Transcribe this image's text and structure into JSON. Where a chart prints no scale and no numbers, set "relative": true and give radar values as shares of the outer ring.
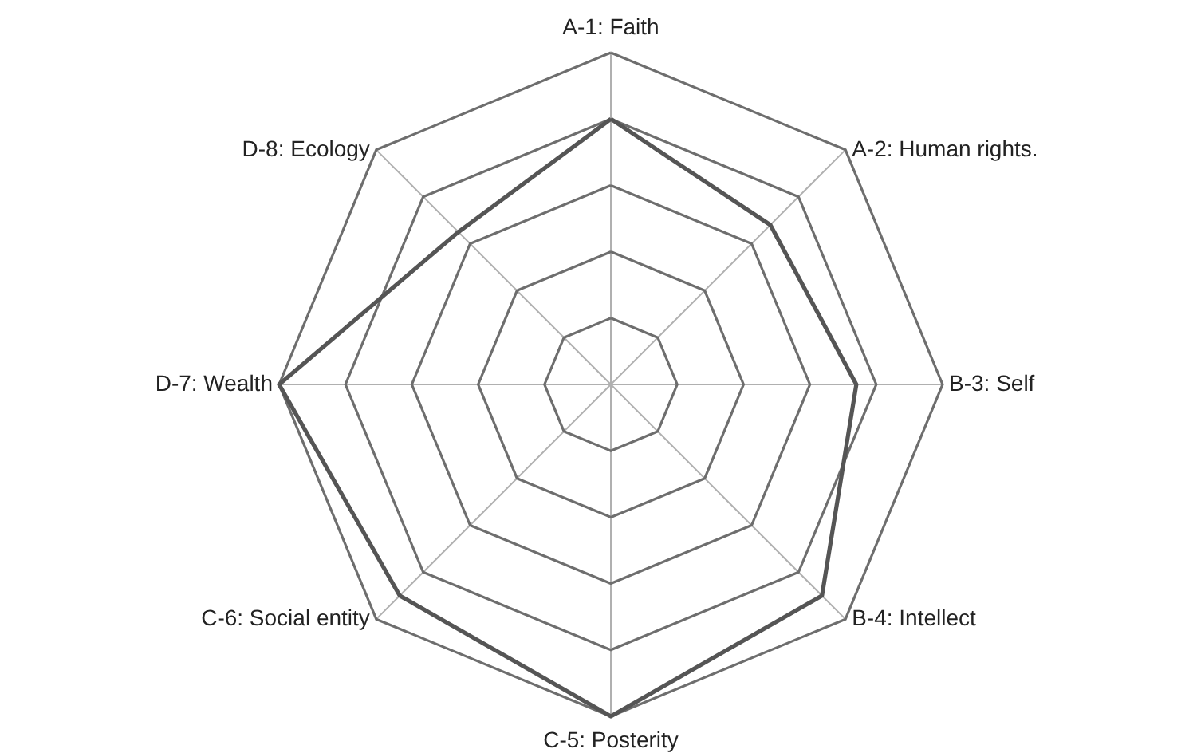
{
  "chart_data": {
    "type": "radar",
    "relative": true,
    "grid": true,
    "categories": [
      "A-1: Faith",
      "A-2: Human rights.",
      "B-3: Self",
      "B-4: Intellect",
      "C-5: Posterity",
      "C-6: Social entity",
      "D-7: Wealth",
      "D-8: Ecology"
    ],
    "series": [
      {
        "color": "#555555",
        "values": [
          0.8,
          0.68,
          0.74,
          0.9,
          1.0,
          0.9,
          1.0,
          0.65
        ]
      }
    ]
  }
}
